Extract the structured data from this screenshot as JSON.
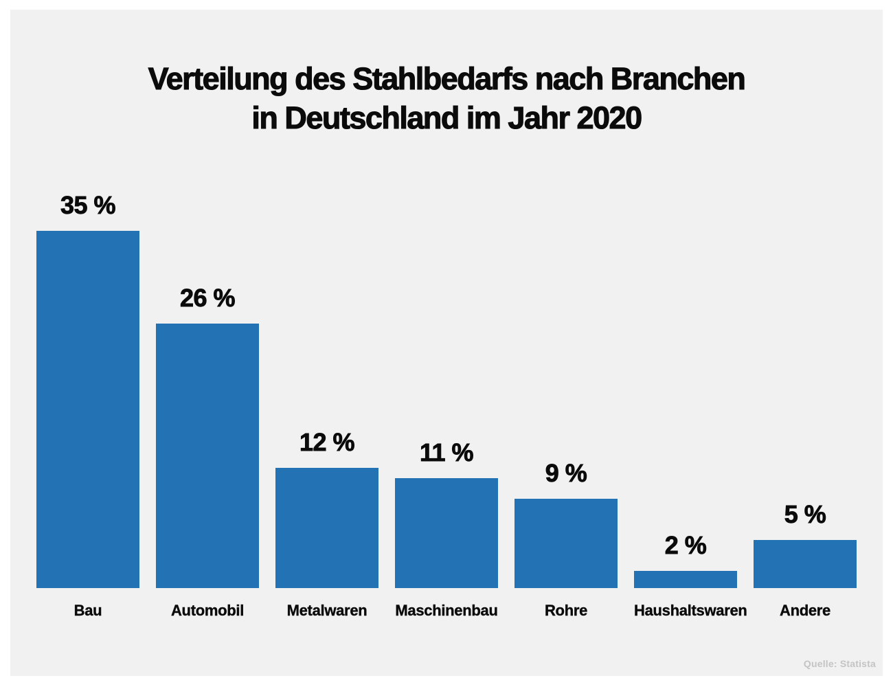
{
  "title": {
    "line1": "Verteilung des Stahlbedarfs nach Branchen",
    "line2": "in Deutschland im Jahr 2020"
  },
  "source": "Quelle: Statista",
  "colors": {
    "bar": "#2272b4",
    "panel_background": "#f1f1f1",
    "outer_background": "#ffffff",
    "text": "#0b0b0b",
    "source_text": "#c4c4c4"
  },
  "chart_data": {
    "type": "bar",
    "title": "Verteilung des Stahlbedarfs nach Branchen in Deutschland im Jahr 2020",
    "categories": [
      "Bau",
      "Automobil",
      "Metalwaren",
      "Maschinenbau",
      "Rohre",
      "Haushaltswaren",
      "Andere"
    ],
    "values": [
      35,
      26,
      12,
      11,
      9,
      2,
      5
    ],
    "value_labels": [
      "35 %",
      "26 %",
      "12 %",
      "11 %",
      "9 %",
      "2 %",
      "5 %"
    ],
    "unit": "%",
    "xlabel": "",
    "ylabel": "",
    "ylim": [
      0,
      35
    ],
    "grid": false,
    "legend": false,
    "bar_color": "#2272b4"
  }
}
